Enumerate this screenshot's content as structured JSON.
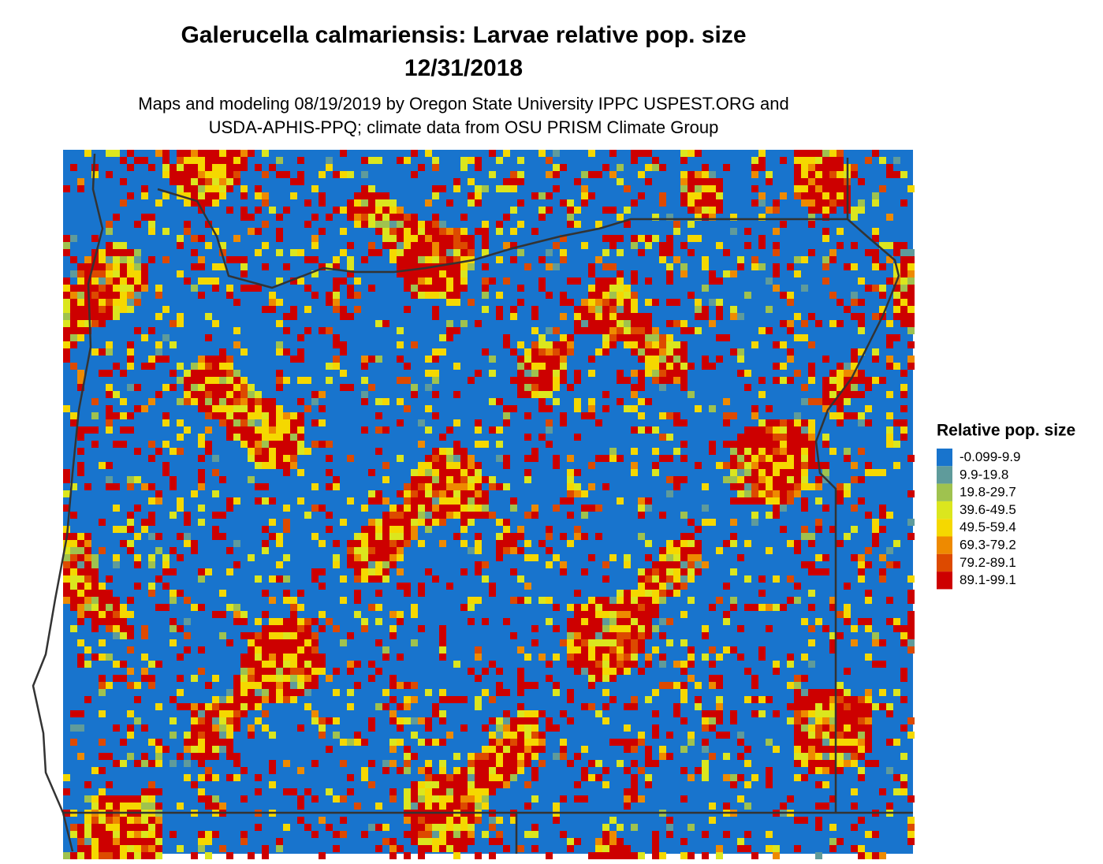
{
  "header": {
    "title": [
      "Galerucella calmariensis: Larvae relative pop. size",
      "12/31/2018"
    ],
    "subtitle": [
      "Maps and modeling 08/19/2019 by Oregon State University IPPC USPEST.ORG and",
      "USDA-APHIS-PPQ; climate data from OSU PRISM Climate Group"
    ]
  },
  "legend": {
    "title": "Relative pop. size",
    "items": [
      {
        "label": "-0.099-9.9",
        "color": "#1874cd"
      },
      {
        "label": "9.9-19.8",
        "color": "#5f9b9b"
      },
      {
        "label": "19.8-29.7",
        "color": "#9fc24f"
      },
      {
        "label": "39.6-49.5",
        "color": "#dbe61e"
      },
      {
        "label": "49.5-59.4",
        "color": "#f5d800"
      },
      {
        "label": "69.3-79.2",
        "color": "#ee8a00"
      },
      {
        "label": "79.2-89.1",
        "color": "#dd4a00"
      },
      {
        "label": "89.1-99.1",
        "color": "#cd0000"
      }
    ]
  }
}
